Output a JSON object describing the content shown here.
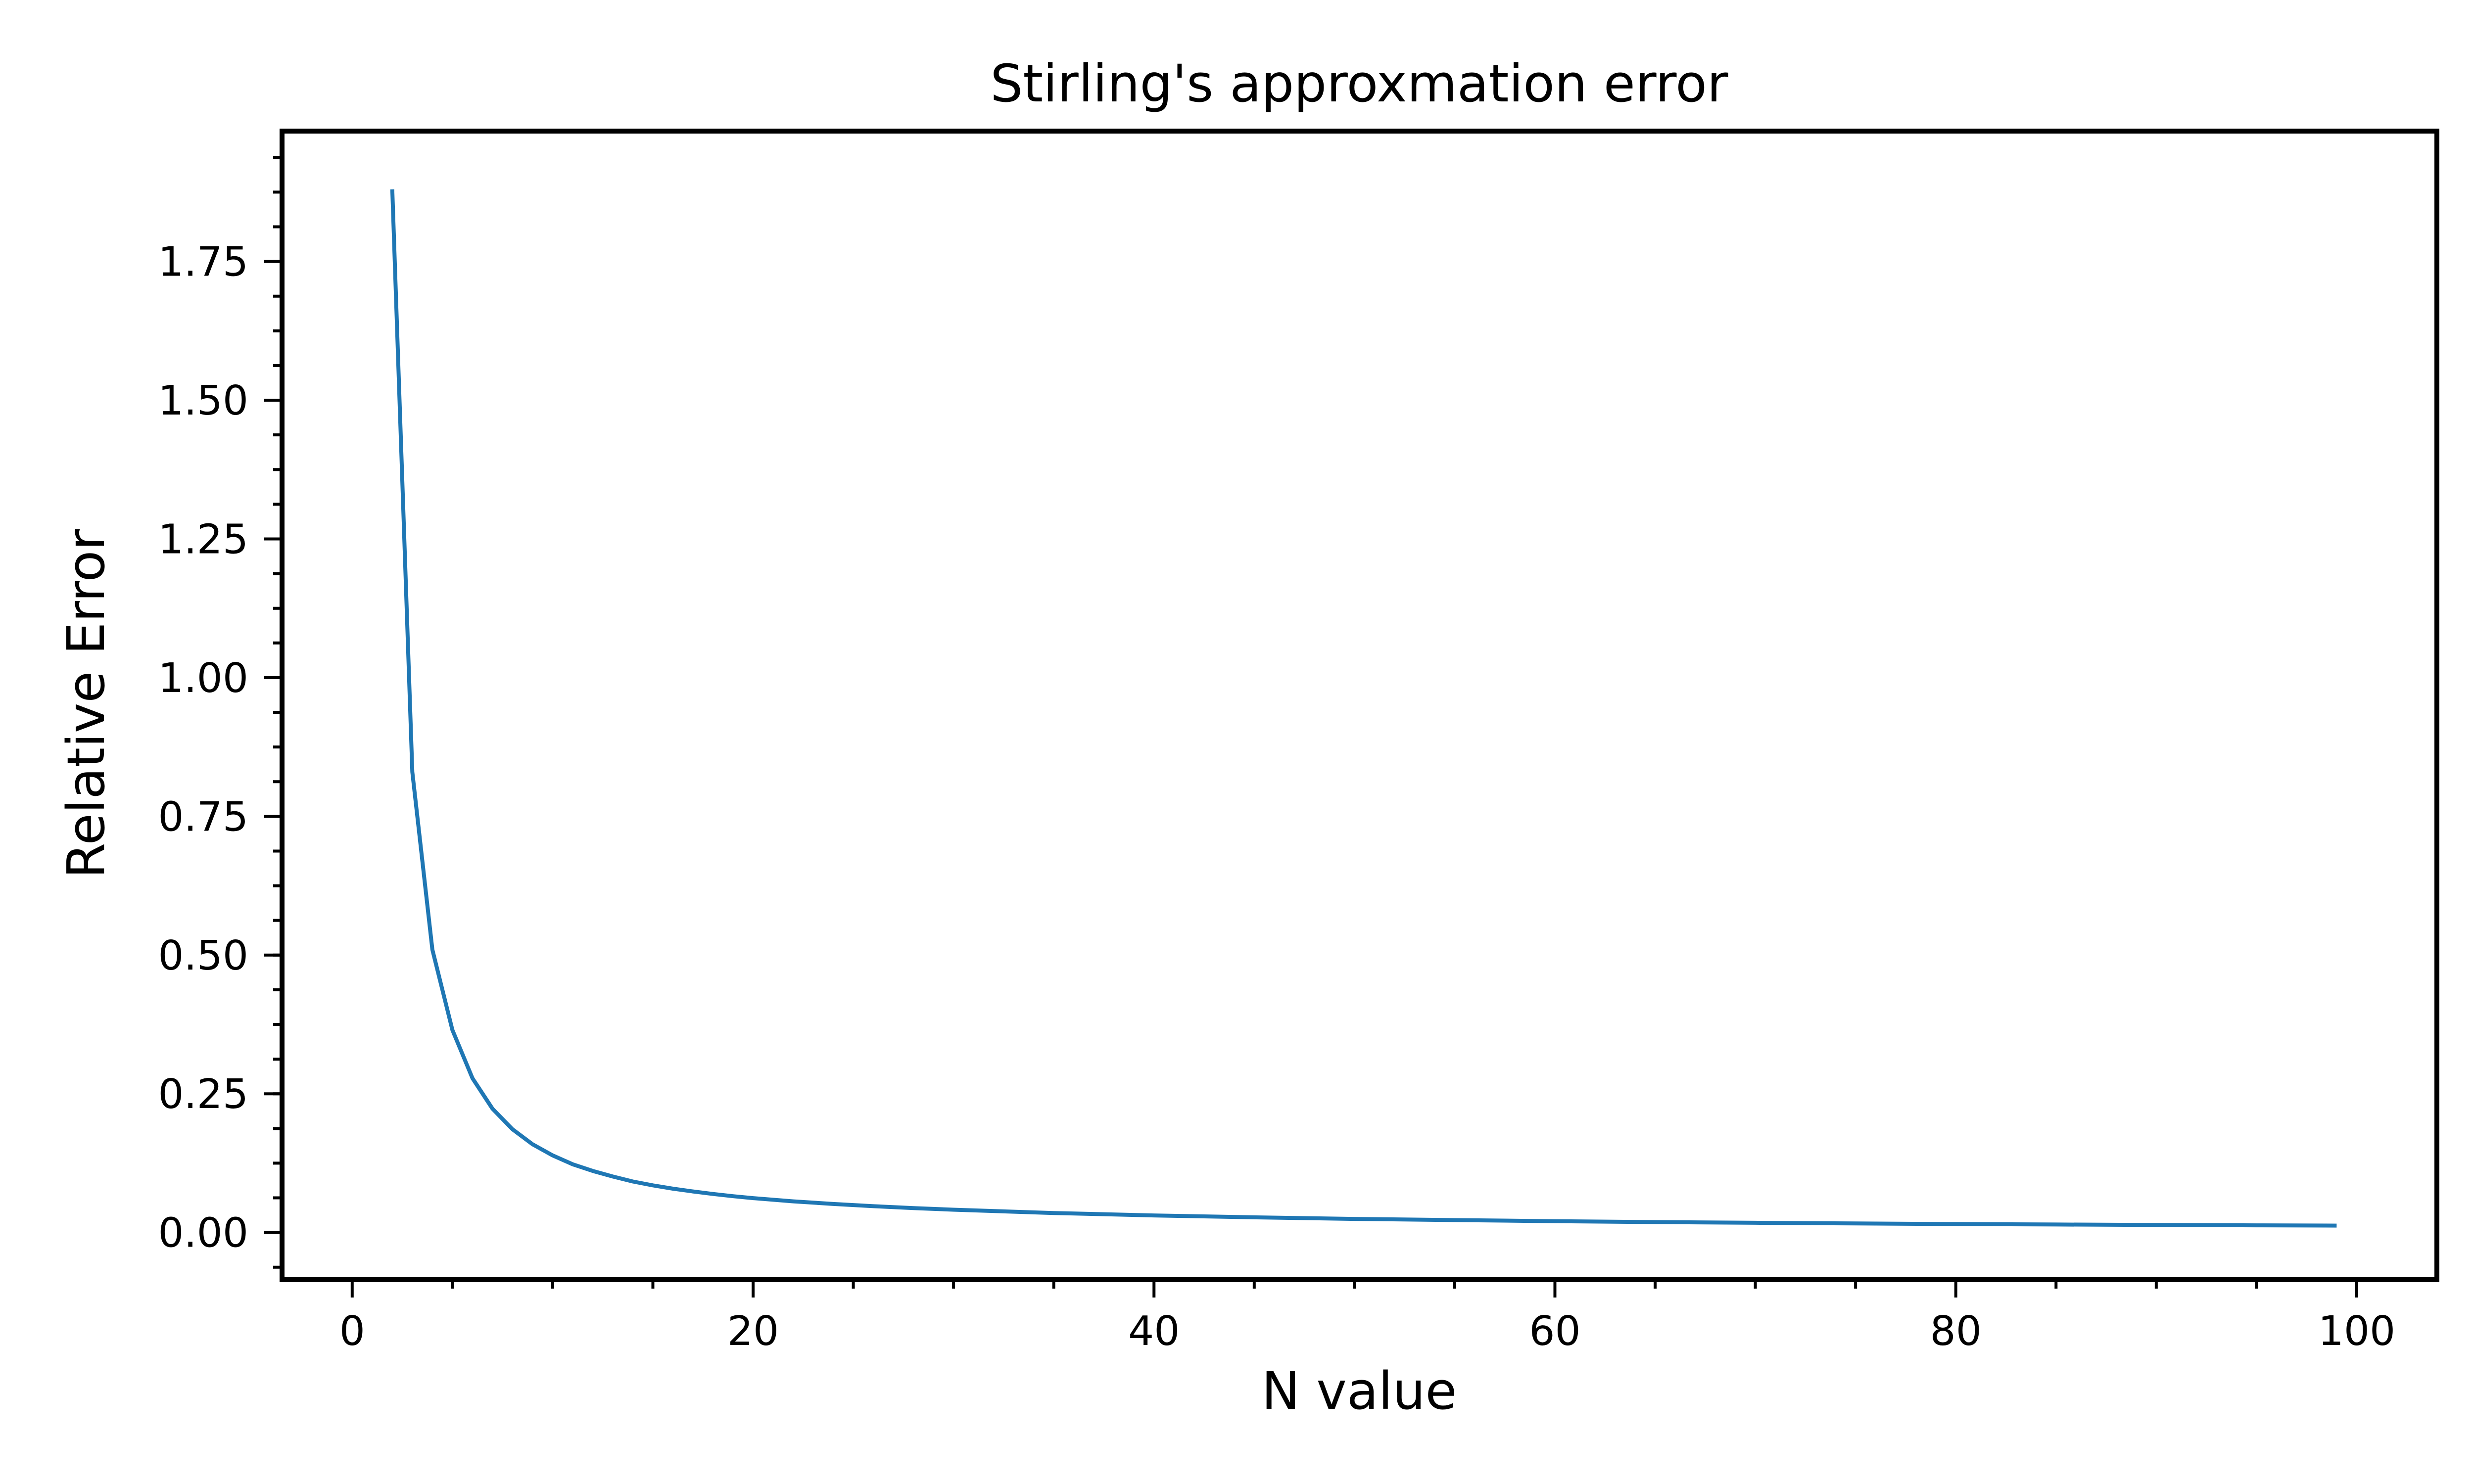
{
  "chart_data": {
    "type": "line",
    "title": "Stirling's approxmation error",
    "xlabel": "N value",
    "ylabel": "Relative Error",
    "xlim": [
      -3.5,
      104
    ],
    "ylim": [
      -0.085,
      1.985
    ],
    "x_major_ticks": [
      0,
      20,
      40,
      60,
      80,
      100
    ],
    "x_minor_step": 5,
    "y_major_ticks": [
      0.0,
      0.25,
      0.5,
      0.75,
      1.0,
      1.25,
      1.5,
      1.75
    ],
    "y_minor_step": 0.0625,
    "y_tick_labels": [
      "0.00",
      "0.25",
      "0.50",
      "0.75",
      "1.00",
      "1.25",
      "1.50",
      "1.75"
    ],
    "x_tick_labels": [
      "0",
      "20",
      "40",
      "60",
      "80",
      "100"
    ],
    "grid": false,
    "series": [
      {
        "color": "#1f77b4",
        "x": [
          2,
          3,
          4,
          5,
          6,
          7,
          8,
          9,
          10,
          11,
          12,
          13,
          14,
          15,
          16,
          17,
          18,
          19,
          20,
          22,
          24,
          26,
          28,
          30,
          35,
          40,
          45,
          50,
          55,
          60,
          65,
          70,
          75,
          80,
          85,
          90,
          95,
          99
        ],
        "y": [
          1.88,
          0.83,
          0.51,
          0.365,
          0.278,
          0.223,
          0.186,
          0.159,
          0.139,
          0.123,
          0.111,
          0.101,
          0.092,
          0.085,
          0.079,
          0.074,
          0.0695,
          0.0655,
          0.062,
          0.0562,
          0.0515,
          0.0475,
          0.0441,
          0.0411,
          0.0352,
          0.0308,
          0.0274,
          0.0246,
          0.0224,
          0.0205,
          0.0189,
          0.0176,
          0.0164,
          0.0154,
          0.0145,
          0.0137,
          0.013,
          0.0125
        ]
      }
    ]
  }
}
